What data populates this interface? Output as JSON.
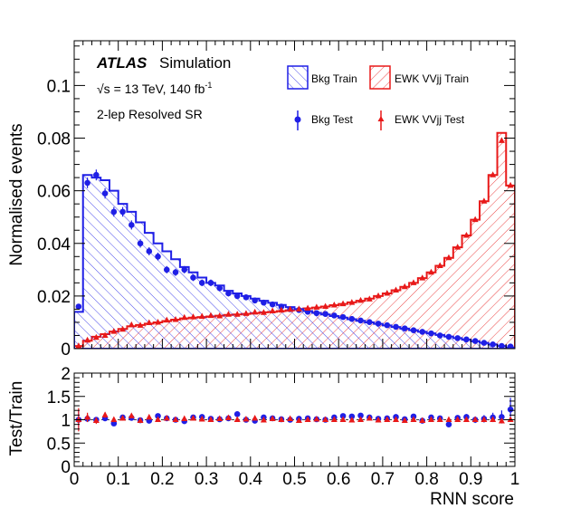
{
  "chart_data": [
    {
      "type": "histogram",
      "panel": "main",
      "ylabel": "Normalised events",
      "xlim": [
        0,
        1
      ],
      "ylim": [
        0,
        0.117
      ],
      "yticks": [
        0,
        0.02,
        0.04,
        0.06,
        0.08,
        0.1
      ],
      "ytick_labels": [
        "0",
        "0.02",
        "0.04",
        "0.06",
        "0.08",
        "0.1"
      ],
      "bin_width": 0.02,
      "annotations": {
        "atlas": "ATLAS",
        "simulation": "Simulation",
        "energy": "√s = 13 TeV, 140 fb",
        "energy_sup": "-1",
        "region": "2-lep Resolved SR"
      },
      "legend": {
        "bkg_train": "Bkg Train",
        "sig_train": "EWK VVjj Train",
        "bkg_test": "Bkg Test",
        "sig_test": "EWK VVjj Test"
      },
      "colors": {
        "bkg": "#1f1fe6",
        "sig": "#e81919"
      },
      "series": [
        {
          "name": "Bkg Train",
          "style": "hatched-step",
          "values": [
            0.014,
            0.066,
            0.065,
            0.064,
            0.06,
            0.055,
            0.052,
            0.048,
            0.044,
            0.04,
            0.037,
            0.034,
            0.031,
            0.029,
            0.027,
            0.025,
            0.024,
            0.022,
            0.021,
            0.02,
            0.019,
            0.0182,
            0.0174,
            0.0166,
            0.0158,
            0.015,
            0.0143,
            0.0136,
            0.013,
            0.0124,
            0.0118,
            0.0112,
            0.0106,
            0.01,
            0.0094,
            0.0088,
            0.0082,
            0.0076,
            0.007,
            0.0064,
            0.0058,
            0.0052,
            0.0046,
            0.004,
            0.0034,
            0.0028,
            0.0022,
            0.0016,
            0.001,
            0.0004
          ]
        },
        {
          "name": "EWK VVjj Train",
          "style": "hatched-step",
          "values": [
            0.001,
            0.003,
            0.0045,
            0.0055,
            0.0065,
            0.0075,
            0.0085,
            0.009,
            0.0095,
            0.01,
            0.0105,
            0.011,
            0.0115,
            0.0118,
            0.012,
            0.0122,
            0.0125,
            0.0128,
            0.013,
            0.0132,
            0.0135,
            0.0138,
            0.014,
            0.0143,
            0.0146,
            0.015,
            0.0153,
            0.0156,
            0.016,
            0.0165,
            0.017,
            0.0176,
            0.0182,
            0.019,
            0.02,
            0.021,
            0.0222,
            0.0235,
            0.025,
            0.0268,
            0.029,
            0.0315,
            0.0345,
            0.0385,
            0.043,
            0.049,
            0.056,
            0.066,
            0.082,
            0.062
          ]
        },
        {
          "name": "Bkg Test",
          "style": "marker-circle",
          "values": [
            0.016,
            0.063,
            0.066,
            0.059,
            0.052,
            0.052,
            0.047,
            0.04,
            0.037,
            0.035,
            0.03,
            0.029,
            0.03,
            0.027,
            0.025,
            0.025,
            0.023,
            0.021,
            0.02,
            0.0195,
            0.0183,
            0.0175,
            0.0168,
            0.016,
            0.015,
            0.0147,
            0.014,
            0.0135,
            0.0132,
            0.0126,
            0.012,
            0.0113,
            0.0107,
            0.0101,
            0.0095,
            0.0089,
            0.0083,
            0.0077,
            0.007,
            0.0064,
            0.0058,
            0.005,
            0.0045,
            0.004,
            0.0035,
            0.0029,
            0.0022,
            0.0016,
            0.001,
            0.0008
          ]
        },
        {
          "name": "EWK VVjj Test",
          "style": "marker-triangle",
          "values": [
            0.001,
            0.0032,
            0.0042,
            0.005,
            0.0065,
            0.0073,
            0.009,
            0.0088,
            0.0098,
            0.01,
            0.0108,
            0.011,
            0.0118,
            0.012,
            0.0122,
            0.0125,
            0.0124,
            0.013,
            0.013,
            0.0133,
            0.0138,
            0.0137,
            0.0143,
            0.0146,
            0.0149,
            0.015,
            0.0153,
            0.0157,
            0.016,
            0.0165,
            0.017,
            0.0175,
            0.0183,
            0.0188,
            0.02,
            0.021,
            0.0222,
            0.0235,
            0.025,
            0.0268,
            0.029,
            0.0315,
            0.0345,
            0.0385,
            0.043,
            0.049,
            0.056,
            0.066,
            0.079,
            0.062
          ]
        }
      ]
    },
    {
      "type": "scatter",
      "panel": "ratio",
      "ylabel": "Test/Train",
      "xlabel": "RNN score",
      "xlim": [
        0,
        1
      ],
      "ylim": [
        0,
        2
      ],
      "xticks": [
        0,
        0.1,
        0.2,
        0.3,
        0.4,
        0.5,
        0.6,
        0.7,
        0.8,
        0.9,
        1
      ],
      "xtick_labels": [
        "0",
        "0.1",
        "0.2",
        "0.3",
        "0.4",
        "0.5",
        "0.6",
        "0.7",
        "0.8",
        "0.9",
        "1"
      ],
      "yticks": [
        0,
        0.5,
        1,
        1.5,
        2
      ],
      "ytick_labels": [
        "0",
        "0.5",
        "1",
        "1.5",
        "2"
      ],
      "series": [
        {
          "name": "Bkg ratio",
          "values": [
            1.0,
            1.02,
            1.0,
            1.03,
            0.92,
            1.05,
            1.04,
            0.99,
            0.98,
            1.08,
            1.03,
            1.0,
            0.97,
            1.05,
            1.06,
            1.02,
            1.01,
            1.03,
            1.12,
            1.0,
            0.98,
            1.05,
            1.03,
            1.01,
            1.0,
            1.02,
            1.03,
            1.01,
            1.0,
            1.05,
            1.08,
            1.07,
            1.09,
            1.05,
            1.02,
            1.03,
            1.06,
            1.01,
            1.07,
            0.98,
            1.05,
            1.03,
            0.9,
            1.04,
            1.06,
            1.0,
            1.02,
            1.05,
            1.06,
            1.22
          ],
          "errors": [
            0.2,
            0.04,
            0.03,
            0.03,
            0.03,
            0.03,
            0.03,
            0.03,
            0.03,
            0.03,
            0.03,
            0.03,
            0.03,
            0.03,
            0.03,
            0.03,
            0.03,
            0.03,
            0.03,
            0.03,
            0.03,
            0.03,
            0.03,
            0.03,
            0.03,
            0.03,
            0.03,
            0.03,
            0.03,
            0.03,
            0.03,
            0.03,
            0.03,
            0.03,
            0.03,
            0.03,
            0.04,
            0.04,
            0.04,
            0.04,
            0.04,
            0.05,
            0.05,
            0.05,
            0.06,
            0.07,
            0.08,
            0.1,
            0.14,
            0.25
          ]
        },
        {
          "name": "Sig ratio",
          "values": [
            1.0,
            1.05,
            0.98,
            1.1,
            1.0,
            1.03,
            1.08,
            0.98,
            1.05,
            1.0,
            1.03,
            1.0,
            1.02,
            1.03,
            1.01,
            1.0,
            1.02,
            1.04,
            1.0,
            1.01,
            1.03,
            0.99,
            1.02,
            1.0,
            1.02,
            0.98,
            1.0,
            1.01,
            1.0,
            1.0,
            1.0,
            0.99,
            1.0,
            1.03,
            0.99,
            1.0,
            1.0,
            0.98,
            1.0,
            0.98,
            1.0,
            1.0,
            1.0,
            1.0,
            1.0,
            1.0,
            1.0,
            1.0,
            0.97,
            1.0
          ],
          "errors": [
            0.25,
            0.1,
            0.07,
            0.06,
            0.05,
            0.05,
            0.04,
            0.04,
            0.04,
            0.04,
            0.04,
            0.04,
            0.03,
            0.03,
            0.03,
            0.03,
            0.03,
            0.03,
            0.03,
            0.03,
            0.03,
            0.03,
            0.03,
            0.03,
            0.03,
            0.03,
            0.03,
            0.03,
            0.03,
            0.03,
            0.03,
            0.03,
            0.03,
            0.03,
            0.03,
            0.03,
            0.03,
            0.03,
            0.03,
            0.03,
            0.03,
            0.03,
            0.03,
            0.03,
            0.03,
            0.03,
            0.03,
            0.02,
            0.02,
            0.02
          ]
        }
      ]
    }
  ]
}
